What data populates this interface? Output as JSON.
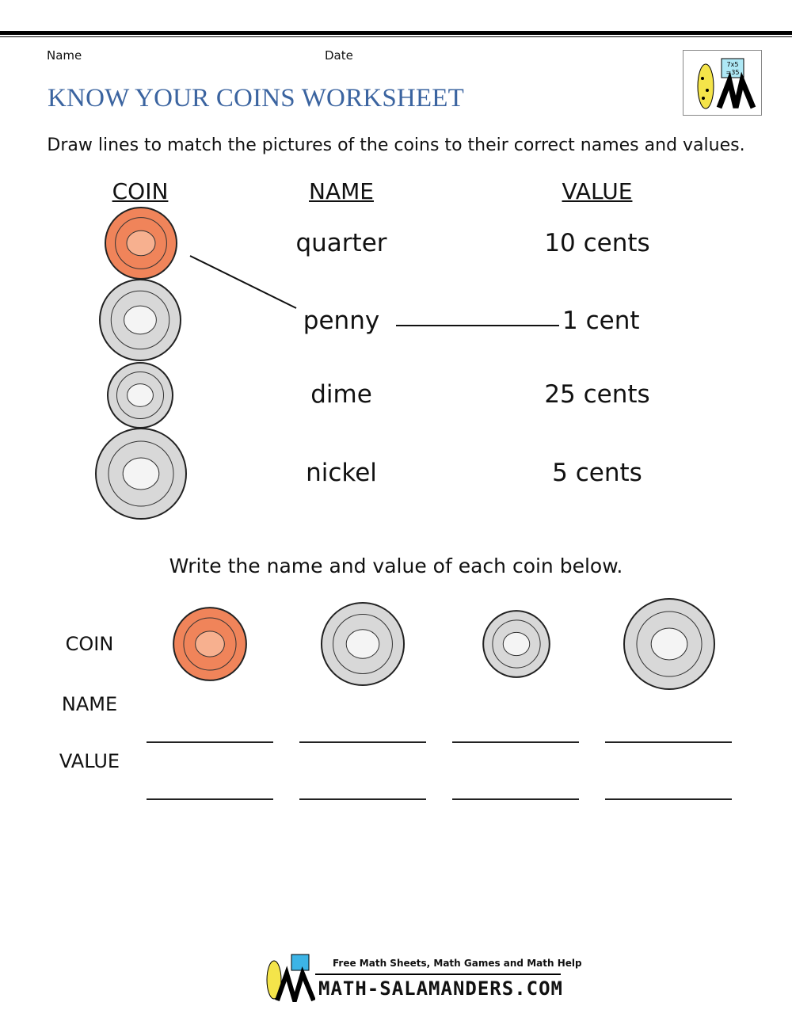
{
  "header": {
    "name_label": "Name",
    "date_label": "Date",
    "title": "KNOW YOUR COINS WORKSHEET",
    "logo_text": "7x5 =35"
  },
  "section1": {
    "instruction": "Draw lines to match the pictures of the coins to their correct names and values.",
    "columns": [
      "COIN",
      "NAME",
      "VALUE"
    ],
    "coins": [
      "penny",
      "nickel",
      "dime",
      "quarter"
    ],
    "names": [
      "quarter",
      "penny",
      "dime",
      "nickel"
    ],
    "values": [
      "10 cents",
      "1 cent",
      "25 cents",
      "5 cents"
    ]
  },
  "section2": {
    "instruction": "Write the name and value of each coin below.",
    "row_labels": [
      "COIN",
      "NAME",
      "VALUE"
    ],
    "coins": [
      "penny",
      "nickel",
      "dime",
      "quarter"
    ]
  },
  "footer": {
    "tagline": "Free Math Sheets, Math Games and Math Help",
    "brand": "MATH-SALAMANDERS.COM"
  },
  "colors": {
    "title": "#3b64a0",
    "penny": "#f0845a",
    "silver": "#d8d8d8"
  }
}
